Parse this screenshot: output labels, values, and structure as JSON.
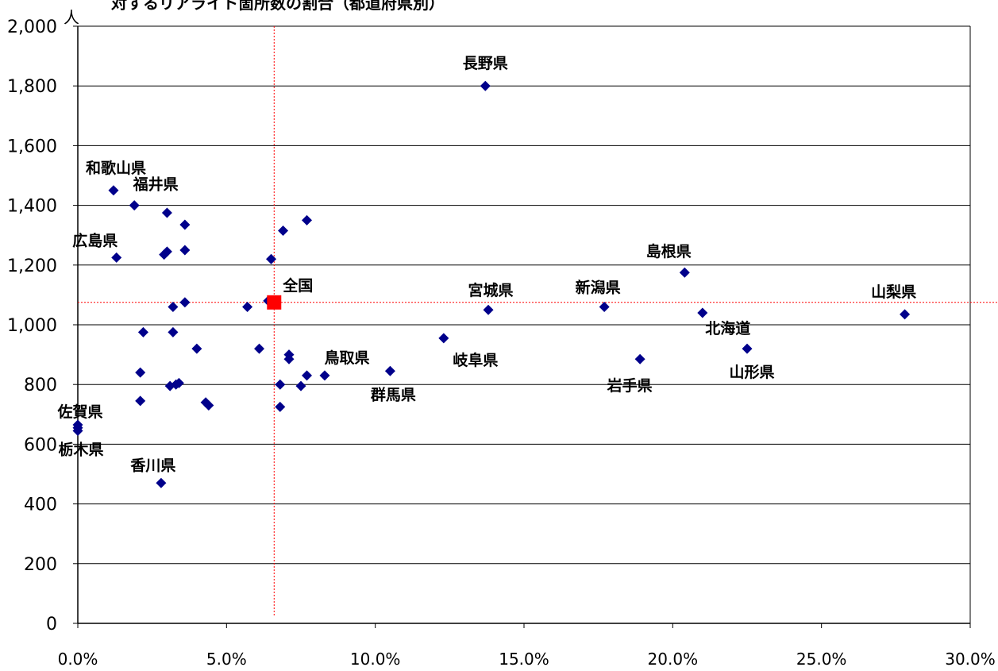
{
  "chart_data": {
    "type": "scatter",
    "title": "対するリアライト箇所数の割合（都道府県別）",
    "y_unit": "人",
    "xlabel": "",
    "ylabel": "",
    "xlim": [
      0,
      0.3
    ],
    "ylim": [
      0,
      2000
    ],
    "x_ticks": [
      0,
      0.05,
      0.1,
      0.15,
      0.2,
      0.25,
      0.3
    ],
    "x_tick_labels": [
      "0.0%",
      "5.0%",
      "10.0%",
      "15.0%",
      "20.0%",
      "25.0%",
      "30.0%"
    ],
    "y_ticks": [
      0,
      200,
      400,
      600,
      800,
      1000,
      1200,
      1400,
      1600,
      1800,
      2000
    ],
    "y_tick_labels": [
      "0",
      "200",
      "400",
      "600",
      "800",
      "1,000",
      "1,200",
      "1,400",
      "1,600",
      "1,800",
      "2,000"
    ],
    "grid": "horizontal",
    "legend": "none",
    "colors": {
      "points": "#00008B",
      "national_marker": "#FF0000",
      "reference_lines": "#FF0000",
      "grid": "#000000"
    },
    "national": {
      "label": "全国",
      "x": 0.066,
      "y": 1075
    },
    "points": [
      {
        "label": "長野県",
        "x": 0.137,
        "y": 1800
      },
      {
        "label": "和歌山県",
        "x": 0.012,
        "y": 1450
      },
      {
        "label": "福井県",
        "x": 0.019,
        "y": 1400
      },
      {
        "label": "広島県",
        "x": 0.013,
        "y": 1225
      },
      {
        "label": "",
        "x": 0.03,
        "y": 1375
      },
      {
        "label": "",
        "x": 0.036,
        "y": 1335
      },
      {
        "label": "",
        "x": 0.029,
        "y": 1235
      },
      {
        "label": "",
        "x": 0.03,
        "y": 1245
      },
      {
        "label": "",
        "x": 0.036,
        "y": 1250
      },
      {
        "label": "",
        "x": 0.069,
        "y": 1315
      },
      {
        "label": "",
        "x": 0.077,
        "y": 1350
      },
      {
        "label": "",
        "x": 0.065,
        "y": 1220
      },
      {
        "label": "",
        "x": 0.032,
        "y": 1060
      },
      {
        "label": "",
        "x": 0.036,
        "y": 1075
      },
      {
        "label": "",
        "x": 0.057,
        "y": 1060
      },
      {
        "label": "",
        "x": 0.064,
        "y": 1080
      },
      {
        "label": "",
        "x": 0.022,
        "y": 975
      },
      {
        "label": "",
        "x": 0.032,
        "y": 975
      },
      {
        "label": "",
        "x": 0.04,
        "y": 920
      },
      {
        "label": "",
        "x": 0.061,
        "y": 920
      },
      {
        "label": "",
        "x": 0.071,
        "y": 900
      },
      {
        "label": "",
        "x": 0.071,
        "y": 885
      },
      {
        "label": "",
        "x": 0.021,
        "y": 840
      },
      {
        "label": "",
        "x": 0.031,
        "y": 795
      },
      {
        "label": "",
        "x": 0.033,
        "y": 800
      },
      {
        "label": "",
        "x": 0.034,
        "y": 805
      },
      {
        "label": "",
        "x": 0.021,
        "y": 745
      },
      {
        "label": "",
        "x": 0.043,
        "y": 740
      },
      {
        "label": "",
        "x": 0.044,
        "y": 730
      },
      {
        "label": "",
        "x": 0.068,
        "y": 800
      },
      {
        "label": "",
        "x": 0.075,
        "y": 795
      },
      {
        "label": "",
        "x": 0.077,
        "y": 830
      },
      {
        "label": "",
        "x": 0.068,
        "y": 725
      },
      {
        "label": "鳥取県",
        "x": 0.083,
        "y": 830
      },
      {
        "label": "群馬県",
        "x": 0.105,
        "y": 845
      },
      {
        "label": "岐阜県",
        "x": 0.123,
        "y": 955
      },
      {
        "label": "宮城県",
        "x": 0.138,
        "y": 1050
      },
      {
        "label": "新潟県",
        "x": 0.177,
        "y": 1060
      },
      {
        "label": "岩手県",
        "x": 0.189,
        "y": 885
      },
      {
        "label": "島根県",
        "x": 0.204,
        "y": 1175
      },
      {
        "label": "北海道",
        "x": 0.21,
        "y": 1040
      },
      {
        "label": "山形県",
        "x": 0.225,
        "y": 920
      },
      {
        "label": "山梨県",
        "x": 0.278,
        "y": 1035
      },
      {
        "label": "佐賀県",
        "x": 0.0,
        "y": 665
      },
      {
        "label": "栃木県",
        "x": 0.0,
        "y": 645
      },
      {
        "label": "",
        "x": 0.0,
        "y": 655
      },
      {
        "label": "香川県",
        "x": 0.028,
        "y": 470
      }
    ]
  }
}
